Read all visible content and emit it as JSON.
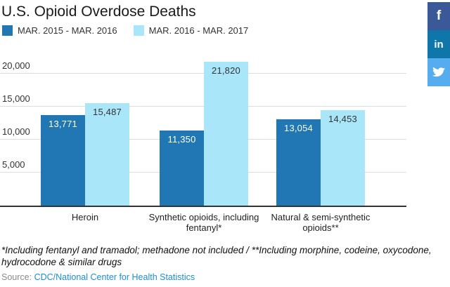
{
  "header": {
    "title": "U.S. Opioid Overdose Deaths"
  },
  "social": {
    "facebook_glyph": "f",
    "linkedin_glyph": "in"
  },
  "chart_data": {
    "type": "bar",
    "title": "U.S. Opioid Overdose Deaths",
    "categories": [
      "Heroin",
      "Synthetic opioids, including fentanyl*",
      "Natural & semi-synthetic opioids**"
    ],
    "series": [
      {
        "name": "MAR. 2015 - MAR. 2016",
        "color": "#2077b4",
        "label_color": "#ffffff",
        "values": [
          13771,
          11350,
          13054
        ]
      },
      {
        "name": "MAR. 2016 - MAR. 2017",
        "color": "#aae6fa",
        "label_color": "#333333",
        "values": [
          15487,
          21820,
          14453
        ]
      }
    ],
    "y_ticks": [
      5000,
      10000,
      15000,
      20000
    ],
    "ylim": [
      0,
      22660
    ],
    "grid": true,
    "gridline_color": "#dddddd",
    "axis_color": "#333333",
    "legend_position": "top-left"
  },
  "footnote": "*Including fentanyl and tramadol; methadone not included / **Including morphine, codeine, oxycodone, hydrocodone & similar drugs",
  "source": {
    "prefix": "Source:",
    "link_text": "CDC/National Center for Health Statistics"
  }
}
